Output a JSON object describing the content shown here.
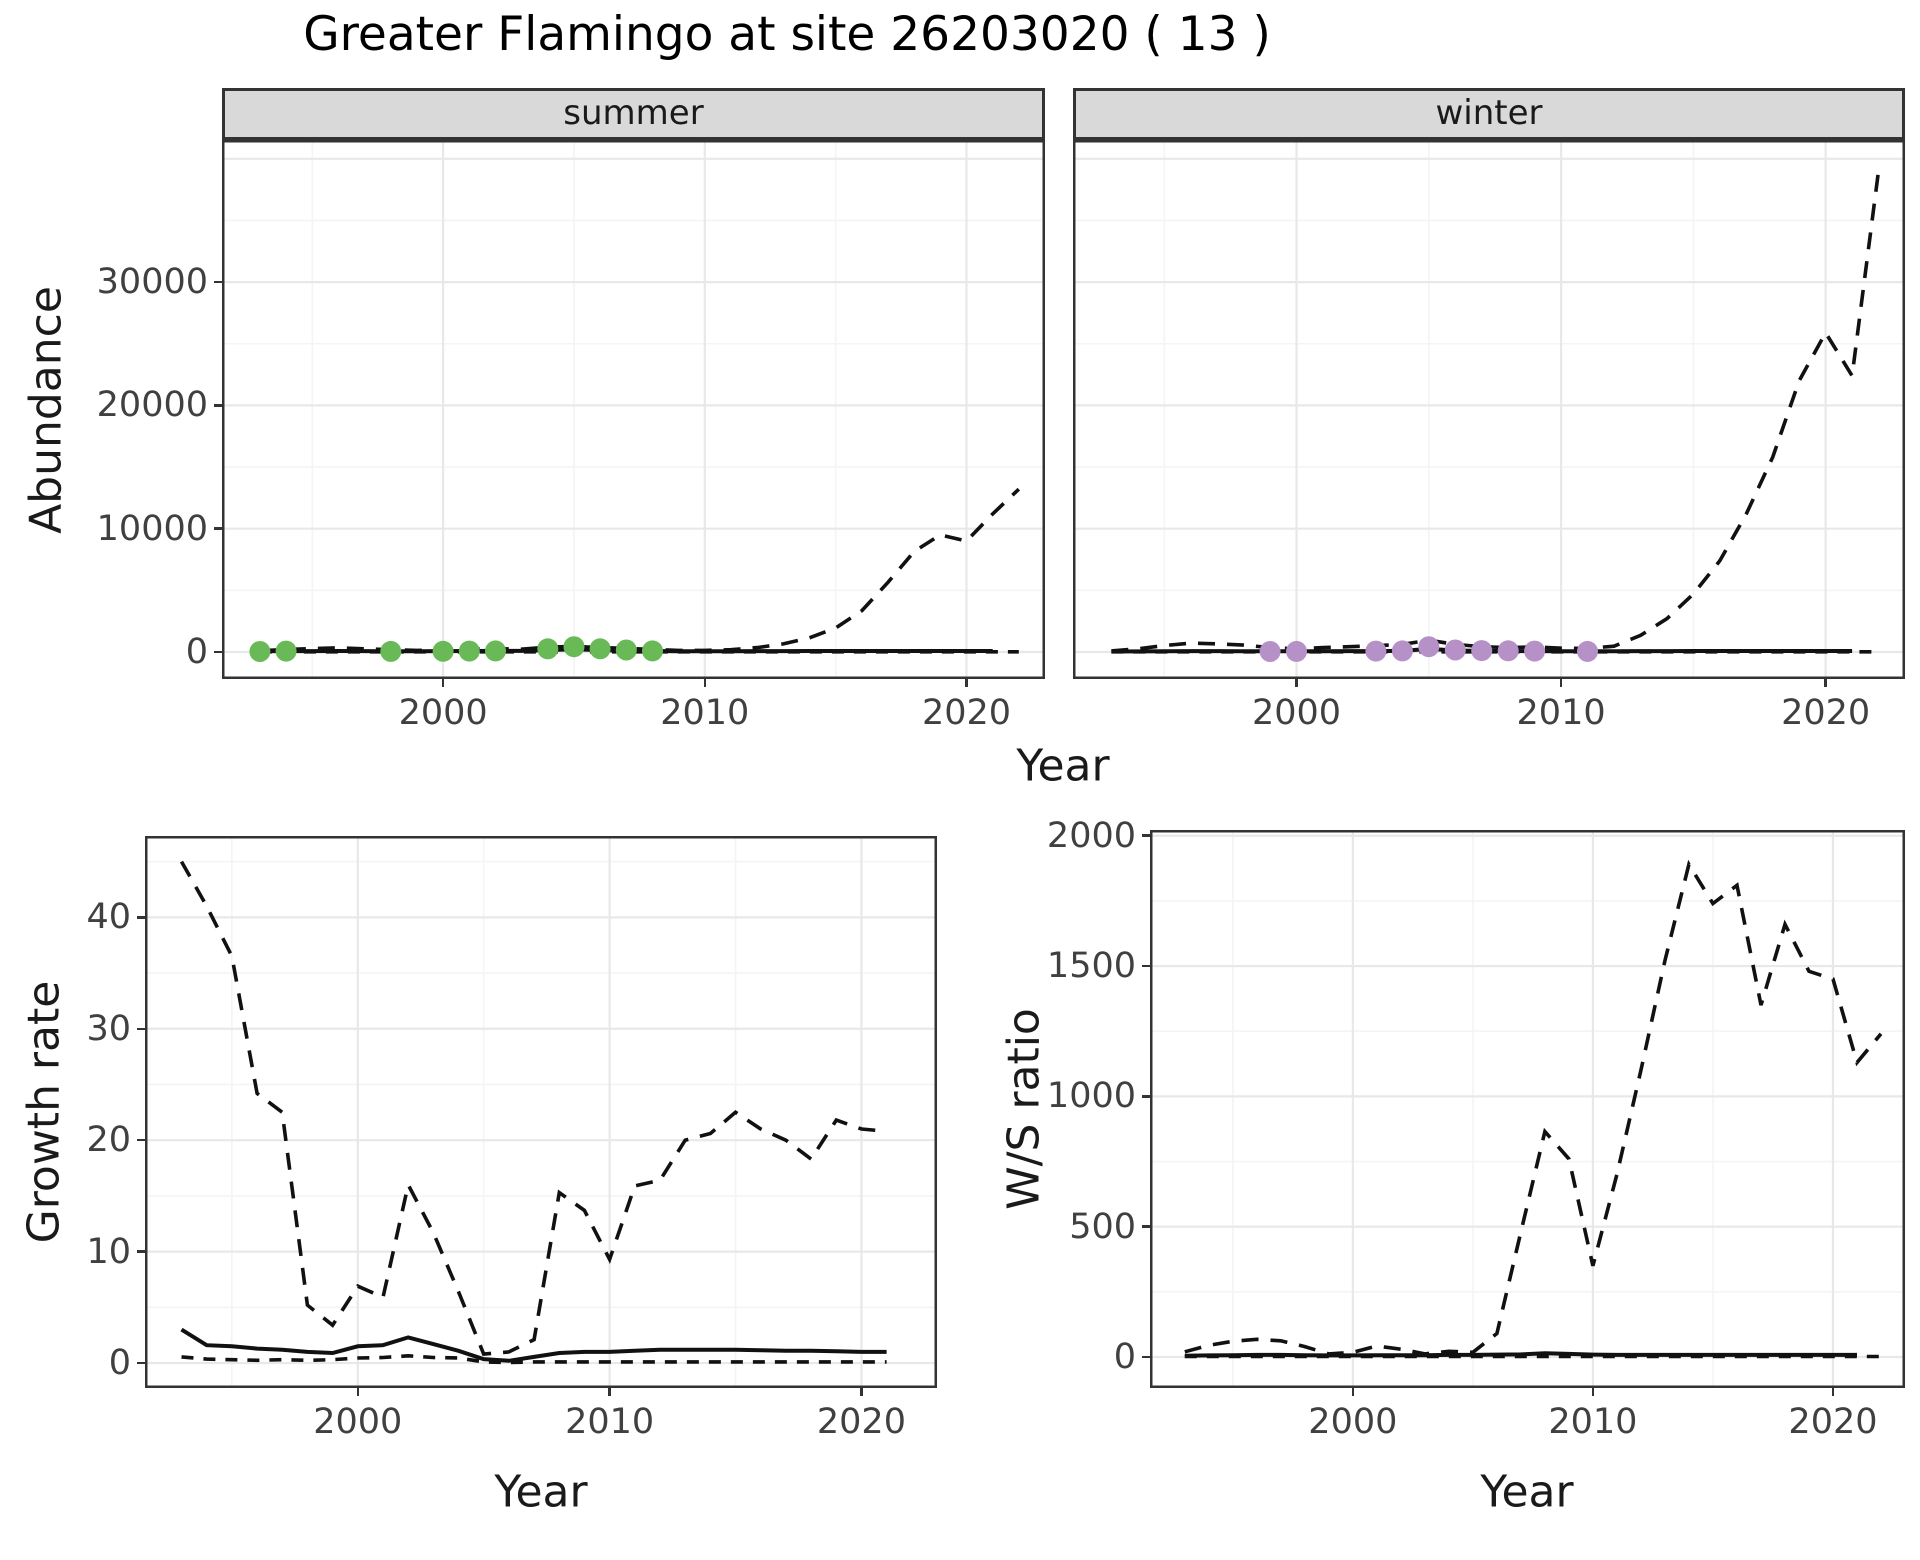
{
  "title": "Greater Flamingo at site 26203020 ( 13 )",
  "axis_titles": {
    "abundance": "Abundance",
    "year": "Year",
    "growth_rate": "Growth rate",
    "ws_ratio": "W/S ratio"
  },
  "facets": [
    {
      "label": "summer"
    },
    {
      "label": "winter"
    }
  ],
  "colors": {
    "summer_point": "#69b956",
    "winter_point": "#b591c8",
    "line": "#111111",
    "grid_major": "#e8e8e8",
    "grid_minor": "#f4f4f4",
    "strip_bg": "#d9d9d9",
    "panel_border": "#333333",
    "tick_text": "#404040",
    "axis_text": "#1a1a1a"
  },
  "chart_data": [
    {
      "id": "abundance-summer",
      "type": "line",
      "facet": "summer",
      "xlabel": "Year",
      "ylabel": "Abundance",
      "x_domain": [
        1991.55,
        2023.0
      ],
      "y_domain": [
        -2190,
        41525
      ],
      "x_ticks": [
        {
          "v": 2000,
          "label": "2000"
        },
        {
          "v": 2010,
          "label": "2010"
        },
        {
          "v": 2020,
          "label": "2020"
        }
      ],
      "y_ticks": [
        {
          "v": 0,
          "label": "0"
        },
        {
          "v": 10000,
          "label": "10000"
        },
        {
          "v": 20000,
          "label": "20000"
        },
        {
          "v": 30000,
          "label": "30000"
        }
      ],
      "x_minor": [
        1995,
        2005,
        2015
      ],
      "y_minor": [
        5000,
        15000,
        25000,
        35000
      ],
      "y_grid_extra": [
        40000
      ],
      "series": [
        {
          "name": "max",
          "dash": "long",
          "x": [
            1993,
            1994,
            1995,
            1996,
            1997,
            1998,
            1999,
            2000,
            2001,
            2002,
            2003,
            2004,
            2005,
            2006,
            2007,
            2008,
            2009,
            2010,
            2011,
            2012,
            2013,
            2014,
            2015,
            2016,
            2017,
            2018,
            2019,
            2020,
            2021,
            2022
          ],
          "y": [
            100,
            200,
            280,
            330,
            260,
            190,
            130,
            190,
            230,
            270,
            230,
            390,
            460,
            360,
            290,
            210,
            130,
            130,
            190,
            360,
            660,
            1150,
            1950,
            3350,
            5650,
            8150,
            9500,
            9000,
            11200,
            13200
          ]
        },
        {
          "name": "min",
          "dash": "short",
          "x": [
            1993,
            1994,
            1995,
            1996,
            1997,
            1998,
            1999,
            2000,
            2001,
            2002,
            2003,
            2004,
            2005,
            2006,
            2007,
            2008,
            2009,
            2010,
            2011,
            2012,
            2013,
            2014,
            2015,
            2016,
            2017,
            2018,
            2019,
            2020,
            2021,
            2022
          ],
          "y": [
            15,
            15,
            15,
            15,
            15,
            15,
            15,
            15,
            15,
            15,
            15,
            15,
            15,
            15,
            15,
            15,
            15,
            15,
            15,
            15,
            15,
            15,
            15,
            15,
            15,
            15,
            15,
            15,
            15,
            15
          ]
        },
        {
          "name": "mean",
          "dash": "solid",
          "x": [
            1993,
            1994,
            1995,
            1996,
            1997,
            1998,
            1999,
            2000,
            2001,
            2002,
            2003,
            2004,
            2005,
            2006,
            2007,
            2008,
            2009,
            2010,
            2011,
            2012,
            2013,
            2014,
            2015,
            2016,
            2017,
            2018,
            2019,
            2020,
            2021
          ],
          "y": [
            60,
            70,
            75,
            80,
            70,
            60,
            55,
            70,
            80,
            90,
            85,
            150,
            230,
            150,
            110,
            80,
            55,
            55,
            60,
            70,
            75,
            80,
            80,
            80,
            80,
            80,
            80,
            80,
            80
          ]
        }
      ],
      "points": {
        "name": "summer-observations",
        "color": "summer_point",
        "x": [
          1993,
          1994,
          1998,
          2000,
          2001,
          2002,
          2004,
          2005,
          2006,
          2007,
          2008
        ],
        "y": [
          40,
          70,
          50,
          60,
          70,
          90,
          260,
          430,
          260,
          160,
          90
        ]
      }
    },
    {
      "id": "abundance-winter",
      "type": "line",
      "facet": "winter",
      "xlabel": "Year",
      "ylabel": "Abundance",
      "x_domain": [
        1991.55,
        2023.0
      ],
      "y_domain": [
        -2190,
        41525
      ],
      "x_ticks": [
        {
          "v": 2000,
          "label": "2000"
        },
        {
          "v": 2010,
          "label": "2010"
        },
        {
          "v": 2020,
          "label": "2020"
        }
      ],
      "y_ticks": [],
      "x_minor": [
        1995,
        2005,
        2015
      ],
      "y_minor": [
        5000,
        15000,
        25000,
        35000
      ],
      "y_grid_extra": [
        0,
        10000,
        20000,
        30000,
        40000
      ],
      "series": [
        {
          "name": "max",
          "dash": "long",
          "x": [
            1993,
            1994,
            1995,
            1996,
            1997,
            1998,
            1999,
            2000,
            2001,
            2002,
            2003,
            2004,
            2005,
            2006,
            2007,
            2008,
            2009,
            2010,
            2011,
            2012,
            2013,
            2014,
            2015,
            2016,
            2017,
            2018,
            2019,
            2020,
            2021,
            2022
          ],
          "y": [
            90,
            260,
            520,
            720,
            660,
            560,
            360,
            260,
            360,
            430,
            510,
            620,
            960,
            620,
            430,
            360,
            410,
            310,
            290,
            470,
            1350,
            2700,
            4700,
            7400,
            11200,
            15800,
            22000,
            25900,
            22400,
            39000
          ]
        },
        {
          "name": "min",
          "dash": "short",
          "x": [
            1993,
            1994,
            1995,
            1996,
            1997,
            1998,
            1999,
            2000,
            2001,
            2002,
            2003,
            2004,
            2005,
            2006,
            2007,
            2008,
            2009,
            2010,
            2011,
            2012,
            2013,
            2014,
            2015,
            2016,
            2017,
            2018,
            2019,
            2020,
            2021,
            2022
          ],
          "y": [
            15,
            15,
            15,
            15,
            15,
            15,
            15,
            15,
            15,
            15,
            15,
            15,
            15,
            15,
            15,
            15,
            15,
            15,
            15,
            15,
            15,
            15,
            15,
            15,
            15,
            15,
            15,
            15,
            15,
            15
          ]
        },
        {
          "name": "mean",
          "dash": "solid",
          "x": [
            1993,
            1994,
            1995,
            1996,
            1997,
            1998,
            1999,
            2000,
            2001,
            2002,
            2003,
            2004,
            2005,
            2006,
            2007,
            2008,
            2009,
            2010,
            2011,
            2012,
            2013,
            2014,
            2015,
            2016,
            2017,
            2018,
            2019,
            2020,
            2021
          ],
          "y": [
            40,
            50,
            60,
            70,
            70,
            65,
            60,
            60,
            65,
            70,
            75,
            90,
            250,
            120,
            90,
            80,
            75,
            65,
            60,
            65,
            70,
            75,
            80,
            80,
            80,
            80,
            80,
            80,
            80
          ]
        }
      ],
      "points": {
        "name": "winter-observations",
        "color": "winter_point",
        "x": [
          1999,
          2000,
          2003,
          2004,
          2005,
          2006,
          2007,
          2008,
          2009,
          2011
        ],
        "y": [
          40,
          50,
          70,
          90,
          430,
          160,
          110,
          100,
          70,
          50
        ]
      }
    },
    {
      "id": "growth-rate",
      "type": "line",
      "facet": null,
      "xlabel": "Year",
      "ylabel": "Growth rate",
      "x_domain": [
        1991.55,
        2023.0
      ],
      "y_domain": [
        -2.24,
        47.3
      ],
      "x_ticks": [
        {
          "v": 2000,
          "label": "2000"
        },
        {
          "v": 2010,
          "label": "2010"
        },
        {
          "v": 2020,
          "label": "2020"
        }
      ],
      "y_ticks": [
        {
          "v": 0,
          "label": "0"
        },
        {
          "v": 10,
          "label": "10"
        },
        {
          "v": 20,
          "label": "20"
        },
        {
          "v": 30,
          "label": "30"
        },
        {
          "v": 40,
          "label": "40"
        }
      ],
      "x_minor": [
        1995,
        2005,
        2015
      ],
      "y_minor": [
        5,
        15,
        25,
        35,
        45
      ],
      "y_grid_extra": [],
      "series": [
        {
          "name": "max",
          "dash": "long",
          "x": [
            1993,
            1994,
            1995,
            1996,
            1997,
            1998,
            1999,
            2000,
            2001,
            2002,
            2003,
            2004,
            2005,
            2006,
            2007,
            2008,
            2009,
            2010,
            2011,
            2012,
            2013,
            2014,
            2015,
            2016,
            2017,
            2018,
            2019,
            2020,
            2021
          ],
          "y": [
            45,
            41,
            36.5,
            24.2,
            22.5,
            5.2,
            3.4,
            6.9,
            5.9,
            16,
            11.7,
            6.4,
            0.8,
            1.0,
            2.1,
            15.3,
            13.7,
            9.3,
            15.9,
            16.4,
            20.0,
            20.6,
            22.5,
            21.0,
            20.0,
            18.3,
            21.8,
            21.0,
            20.8
          ]
        },
        {
          "name": "min",
          "dash": "short",
          "x": [
            1993,
            1994,
            1995,
            1996,
            1997,
            1998,
            1999,
            2000,
            2001,
            2002,
            2003,
            2004,
            2005,
            2006,
            2007,
            2008,
            2009,
            2010,
            2011,
            2012,
            2013,
            2014,
            2015,
            2016,
            2017,
            2018,
            2019,
            2020,
            2021
          ],
          "y": [
            0.55,
            0.35,
            0.3,
            0.25,
            0.3,
            0.25,
            0.3,
            0.45,
            0.5,
            0.65,
            0.5,
            0.45,
            0.1,
            0.05,
            0.1,
            0.1,
            0.1,
            0.1,
            0.1,
            0.1,
            0.1,
            0.1,
            0.1,
            0.1,
            0.1,
            0.1,
            0.1,
            0.1,
            0.1
          ]
        },
        {
          "name": "mean",
          "dash": "solid",
          "x": [
            1993,
            1994,
            1995,
            1996,
            1997,
            1998,
            1999,
            2000,
            2001,
            2002,
            2003,
            2004,
            2005,
            2006,
            2007,
            2008,
            2009,
            2010,
            2011,
            2012,
            2013,
            2014,
            2015,
            2016,
            2017,
            2018,
            2019,
            2020,
            2021
          ],
          "y": [
            3.0,
            1.6,
            1.5,
            1.3,
            1.2,
            1.0,
            0.9,
            1.5,
            1.6,
            2.3,
            1.7,
            1.1,
            0.35,
            0.2,
            0.55,
            0.9,
            1.0,
            1.0,
            1.1,
            1.2,
            1.2,
            1.2,
            1.2,
            1.15,
            1.1,
            1.1,
            1.05,
            1.0,
            1.0
          ]
        }
      ],
      "points": null
    },
    {
      "id": "ws-ratio",
      "type": "line",
      "facet": null,
      "xlabel": "Year",
      "ylabel": "W/S ratio",
      "x_domain": [
        1991.55,
        2023.0
      ],
      "y_domain": [
        -119,
        2022
      ],
      "x_ticks": [
        {
          "v": 2000,
          "label": "2000"
        },
        {
          "v": 2010,
          "label": "2010"
        },
        {
          "v": 2020,
          "label": "2020"
        }
      ],
      "y_ticks": [
        {
          "v": 0,
          "label": "0"
        },
        {
          "v": 500,
          "label": "500"
        },
        {
          "v": 1000,
          "label": "1000"
        },
        {
          "v": 1500,
          "label": "1500"
        },
        {
          "v": 2000,
          "label": "2000"
        }
      ],
      "x_minor": [
        1995,
        2005,
        2015
      ],
      "y_minor": [
        250,
        750,
        1250,
        1750
      ],
      "y_grid_extra": [],
      "series": [
        {
          "name": "max",
          "dash": "long",
          "x": [
            1993,
            1994,
            1995,
            1996,
            1997,
            1998,
            1999,
            2000,
            2001,
            2002,
            2003,
            2004,
            2005,
            2006,
            2007,
            2008,
            2009,
            2010,
            2011,
            2012,
            2013,
            2014,
            2015,
            2016,
            2017,
            2018,
            2019,
            2020,
            2021,
            2022
          ],
          "y": [
            20,
            45,
            60,
            68,
            62,
            40,
            12,
            18,
            42,
            30,
            12,
            22,
            18,
            90,
            480,
            865,
            760,
            350,
            700,
            1100,
            1520,
            1890,
            1740,
            1810,
            1350,
            1660,
            1480,
            1450,
            1130,
            1240
          ]
        },
        {
          "name": "min",
          "dash": "short",
          "x": [
            1993,
            1994,
            1995,
            1996,
            1997,
            1998,
            1999,
            2000,
            2001,
            2002,
            2003,
            2004,
            2005,
            2006,
            2007,
            2008,
            2009,
            2010,
            2011,
            2012,
            2013,
            2014,
            2015,
            2016,
            2017,
            2018,
            2019,
            2020,
            2021,
            2022
          ],
          "y": [
            2,
            2,
            2,
            2,
            2,
            2,
            2,
            2,
            2,
            2,
            2,
            2,
            2,
            2,
            2,
            2,
            2,
            2,
            2,
            2,
            2,
            2,
            2,
            2,
            2,
            2,
            2,
            2,
            2,
            2
          ]
        },
        {
          "name": "mean",
          "dash": "solid",
          "x": [
            1993,
            1994,
            1995,
            1996,
            1997,
            1998,
            1999,
            2000,
            2001,
            2002,
            2003,
            2004,
            2005,
            2006,
            2007,
            2008,
            2009,
            2010,
            2011,
            2012,
            2013,
            2014,
            2015,
            2016,
            2017,
            2018,
            2019,
            2020,
            2021
          ],
          "y": [
            5,
            6,
            7,
            8,
            8,
            7,
            6,
            6,
            7,
            7,
            7,
            8,
            8,
            9,
            10,
            14,
            12,
            9,
            8,
            8,
            8,
            8,
            8,
            8,
            8,
            8,
            8,
            8,
            8
          ]
        }
      ],
      "points": null
    }
  ]
}
